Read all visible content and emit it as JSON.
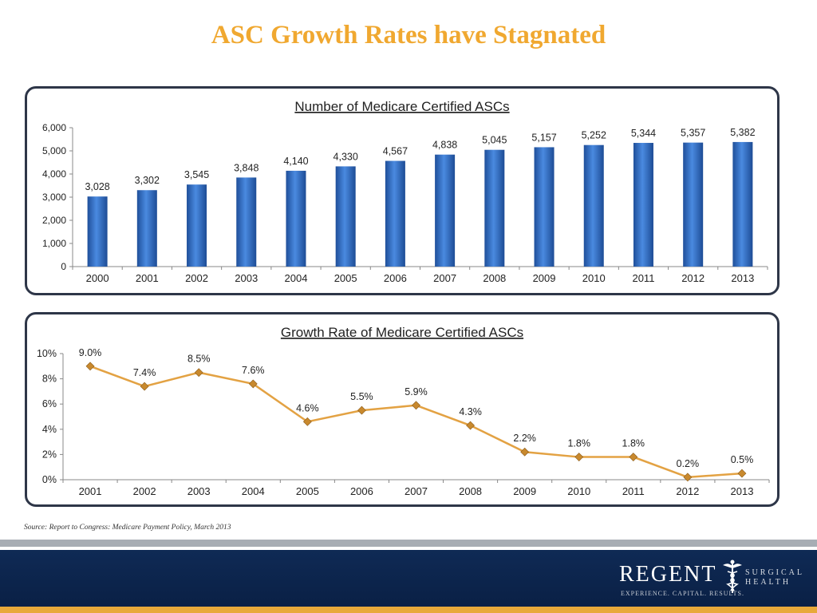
{
  "page": {
    "title": "ASC Growth Rates have Stagnated",
    "source": "Source:  Report to Congress:  Medicare Payment Policy, March 2013"
  },
  "logo": {
    "main": "REGENT",
    "sub1": "SURGICAL",
    "sub2": "HEALTH",
    "tagline": "EXPERIENCE. CAPITAL. RESULTS."
  },
  "colors": {
    "title": "#f0a830",
    "bar": "#2f6fc7",
    "line": "#e3a243",
    "marker": "#c8892e",
    "border": "#2e3648",
    "footer": "#0f2a55",
    "gold": "#e8a93a"
  },
  "chart_data": [
    {
      "type": "bar",
      "title": "Number of Medicare Certified ASCs",
      "categories": [
        "2000",
        "2001",
        "2002",
        "2003",
        "2004",
        "2005",
        "2006",
        "2007",
        "2008",
        "2009",
        "2010",
        "2011",
        "2012",
        "2013"
      ],
      "values": [
        3028,
        3302,
        3545,
        3848,
        4140,
        4330,
        4567,
        4838,
        5045,
        5157,
        5252,
        5344,
        5357,
        5382
      ],
      "value_labels": [
        "3,028",
        "3,302",
        "3,545",
        "3,848",
        "4,140",
        "4,330",
        "4,567",
        "4,838",
        "5,045",
        "5,157",
        "5,252",
        "5,344",
        "5,357",
        "5,382"
      ],
      "yticks": [
        0,
        1000,
        2000,
        3000,
        4000,
        5000,
        6000
      ],
      "ytick_labels": [
        "0",
        "1,000",
        "2,000",
        "3,000",
        "4,000",
        "5,000",
        "6,000"
      ],
      "ylim": [
        0,
        6000
      ],
      "xlabel": "",
      "ylabel": "",
      "grid": false,
      "legend": "none"
    },
    {
      "type": "line",
      "title": "Growth Rate of Medicare Certified ASCs",
      "categories": [
        "2001",
        "2002",
        "2003",
        "2004",
        "2005",
        "2006",
        "2007",
        "2008",
        "2009",
        "2010",
        "2011",
        "2012",
        "2013"
      ],
      "values": [
        9.0,
        7.4,
        8.5,
        7.6,
        4.6,
        5.5,
        5.9,
        4.3,
        2.2,
        1.8,
        1.8,
        0.2,
        0.5
      ],
      "value_labels": [
        "9.0%",
        "7.4%",
        "8.5%",
        "7.6%",
        "4.6%",
        "5.5%",
        "5.9%",
        "4.3%",
        "2.2%",
        "1.8%",
        "1.8%",
        "0.2%",
        "0.5%"
      ],
      "yticks": [
        0,
        2,
        4,
        6,
        8,
        10
      ],
      "ytick_labels": [
        "0%",
        "2%",
        "4%",
        "6%",
        "8%",
        "10%"
      ],
      "ylim": [
        0,
        10
      ],
      "xlabel": "",
      "ylabel": "",
      "grid": false,
      "legend": "none"
    }
  ]
}
